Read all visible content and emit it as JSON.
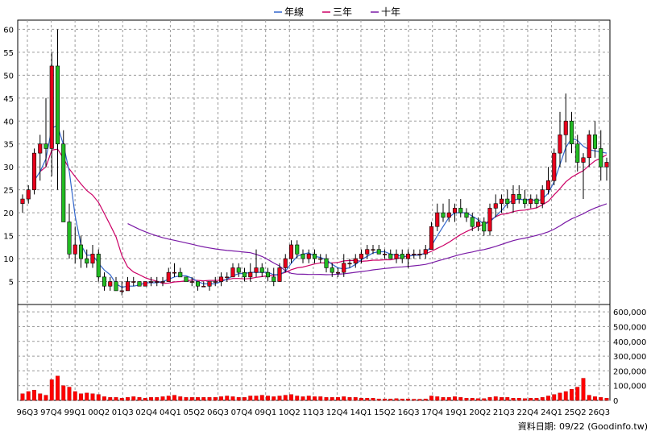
{
  "chart_data": {
    "type": "candlestick",
    "legend": [
      {
        "label": "年線",
        "color": "#3366cc"
      },
      {
        "label": "三年",
        "color": "#cc0066"
      },
      {
        "label": "十年",
        "color": "#7a1aa6"
      }
    ],
    "price_axis": {
      "ylim": [
        0,
        62
      ],
      "ticks": [
        5,
        10,
        15,
        20,
        25,
        30,
        35,
        40,
        45,
        50,
        55,
        60
      ]
    },
    "volume_axis": {
      "ylim": [
        0,
        650000
      ],
      "ticks": [
        "0",
        "100,000",
        "200,000",
        "300,000",
        "400,000",
        "500,000",
        "600,000"
      ]
    },
    "x_tick_labels": [
      "96Q3",
      "97Q4",
      "99Q1",
      "00Q2",
      "01Q3",
      "02Q4",
      "04Q1",
      "05Q2",
      "06Q3",
      "07Q4",
      "09Q1",
      "10Q2",
      "11Q3",
      "12Q4",
      "14Q1",
      "15Q2",
      "16Q3",
      "17Q4",
      "19Q1",
      "20Q2",
      "21Q3",
      "22Q4",
      "24Q1",
      "25Q2",
      "26Q3"
    ],
    "candles_ohlc": [
      [
        22,
        24,
        20,
        23
      ],
      [
        23,
        26,
        22,
        25
      ],
      [
        25,
        34,
        24,
        33
      ],
      [
        33,
        37,
        27,
        35
      ],
      [
        35,
        45,
        30,
        34
      ],
      [
        34,
        55,
        28,
        52
      ],
      [
        52,
        60,
        25,
        35
      ],
      [
        35,
        38,
        20,
        18
      ],
      [
        18,
        22,
        10,
        11
      ],
      [
        11,
        17,
        9,
        13
      ],
      [
        13,
        15,
        8,
        10
      ],
      [
        10,
        12,
        8,
        9
      ],
      [
        9,
        13,
        8,
        11
      ],
      [
        11,
        12,
        5,
        6
      ],
      [
        6,
        7,
        3,
        4
      ],
      [
        4,
        6,
        3,
        5
      ],
      [
        5,
        6,
        3,
        3
      ],
      [
        3,
        5,
        2,
        3
      ],
      [
        3,
        6,
        3,
        5
      ],
      [
        5,
        6,
        4,
        5
      ],
      [
        5,
        5,
        4,
        4
      ],
      [
        4,
        5,
        4,
        5
      ],
      [
        5,
        6,
        4,
        5
      ],
      [
        5,
        6,
        4,
        5
      ],
      [
        5,
        6,
        4,
        5
      ],
      [
        5,
        8,
        5,
        7
      ],
      [
        7,
        9,
        6,
        7
      ],
      [
        7,
        8,
        6,
        6
      ],
      [
        6,
        6,
        5,
        5
      ],
      [
        5,
        6,
        4,
        5
      ],
      [
        5,
        5,
        3,
        4
      ],
      [
        4,
        5,
        4,
        4
      ],
      [
        4,
        5,
        3,
        5
      ],
      [
        5,
        6,
        4,
        5
      ],
      [
        5,
        7,
        4,
        6
      ],
      [
        6,
        7,
        5,
        6
      ],
      [
        6,
        9,
        6,
        8
      ],
      [
        8,
        9,
        6,
        7
      ],
      [
        7,
        8,
        5,
        6
      ],
      [
        6,
        9,
        5,
        7
      ],
      [
        7,
        12,
        6,
        8
      ],
      [
        8,
        9,
        6,
        7
      ],
      [
        7,
        8,
        5,
        6
      ],
      [
        6,
        8,
        4,
        5
      ],
      [
        5,
        9,
        5,
        8
      ],
      [
        8,
        11,
        7,
        10
      ],
      [
        10,
        14,
        9,
        13
      ],
      [
        13,
        14,
        10,
        11
      ],
      [
        11,
        12,
        9,
        10
      ],
      [
        10,
        12,
        9,
        11
      ],
      [
        11,
        12,
        9,
        10
      ],
      [
        10,
        11,
        9,
        10
      ],
      [
        10,
        11,
        7,
        8
      ],
      [
        8,
        9,
        6,
        7
      ],
      [
        7,
        8,
        6,
        7
      ],
      [
        7,
        11,
        6,
        9
      ],
      [
        9,
        10,
        8,
        9
      ],
      [
        9,
        11,
        8,
        10
      ],
      [
        10,
        12,
        9,
        11
      ],
      [
        11,
        13,
        10,
        12
      ],
      [
        12,
        13,
        11,
        12
      ],
      [
        12,
        13,
        11,
        11
      ],
      [
        11,
        12,
        10,
        11
      ],
      [
        11,
        12,
        10,
        10
      ],
      [
        10,
        12,
        9,
        11
      ],
      [
        11,
        12,
        9,
        10
      ],
      [
        10,
        12,
        8,
        11
      ],
      [
        11,
        12,
        10,
        11
      ],
      [
        11,
        12,
        10,
        11
      ],
      [
        11,
        13,
        10,
        12
      ],
      [
        12,
        18,
        12,
        17
      ],
      [
        17,
        22,
        16,
        20
      ],
      [
        20,
        22,
        18,
        19
      ],
      [
        19,
        23,
        18,
        20
      ],
      [
        20,
        22,
        18,
        21
      ],
      [
        21,
        23,
        19,
        20
      ],
      [
        20,
        21,
        18,
        19
      ],
      [
        19,
        20,
        16,
        17
      ],
      [
        17,
        19,
        16,
        18
      ],
      [
        18,
        19,
        15,
        16
      ],
      [
        16,
        22,
        15,
        21
      ],
      [
        21,
        24,
        19,
        22
      ],
      [
        22,
        24,
        20,
        23
      ],
      [
        23,
        25,
        21,
        22
      ],
      [
        22,
        26,
        20,
        24
      ],
      [
        24,
        26,
        22,
        23
      ],
      [
        23,
        25,
        21,
        22
      ],
      [
        22,
        24,
        21,
        23
      ],
      [
        23,
        24,
        21,
        22
      ],
      [
        22,
        26,
        21,
        25
      ],
      [
        25,
        30,
        24,
        27
      ],
      [
        27,
        34,
        26,
        33
      ],
      [
        33,
        42,
        30,
        37
      ],
      [
        37,
        46,
        31,
        40
      ],
      [
        40,
        42,
        33,
        35
      ],
      [
        35,
        37,
        29,
        31
      ],
      [
        31,
        33,
        23,
        32
      ],
      [
        32,
        38,
        30,
        37
      ],
      [
        37,
        40,
        32,
        34
      ],
      [
        34,
        38,
        27,
        30
      ],
      [
        30,
        32,
        27,
        31
      ]
    ],
    "volumes_thousands": [
      45,
      60,
      70,
      45,
      35,
      140,
      165,
      100,
      90,
      60,
      45,
      50,
      45,
      40,
      25,
      20,
      20,
      15,
      20,
      25,
      20,
      15,
      20,
      20,
      25,
      30,
      35,
      25,
      20,
      20,
      20,
      20,
      20,
      20,
      25,
      30,
      25,
      20,
      20,
      30,
      30,
      35,
      30,
      25,
      30,
      35,
      40,
      30,
      25,
      30,
      25,
      25,
      20,
      20,
      20,
      25,
      20,
      20,
      15,
      15,
      15,
      10,
      10,
      10,
      12,
      10,
      10,
      8,
      8,
      10,
      30,
      25,
      20,
      20,
      25,
      20,
      15,
      15,
      12,
      12,
      20,
      25,
      20,
      20,
      15,
      15,
      12,
      15,
      15,
      20,
      30,
      40,
      50,
      60,
      75,
      90,
      150,
      35,
      25,
      20,
      15
    ],
    "footer": "資料日期: 09/22  (Goodinfo.tw)"
  }
}
